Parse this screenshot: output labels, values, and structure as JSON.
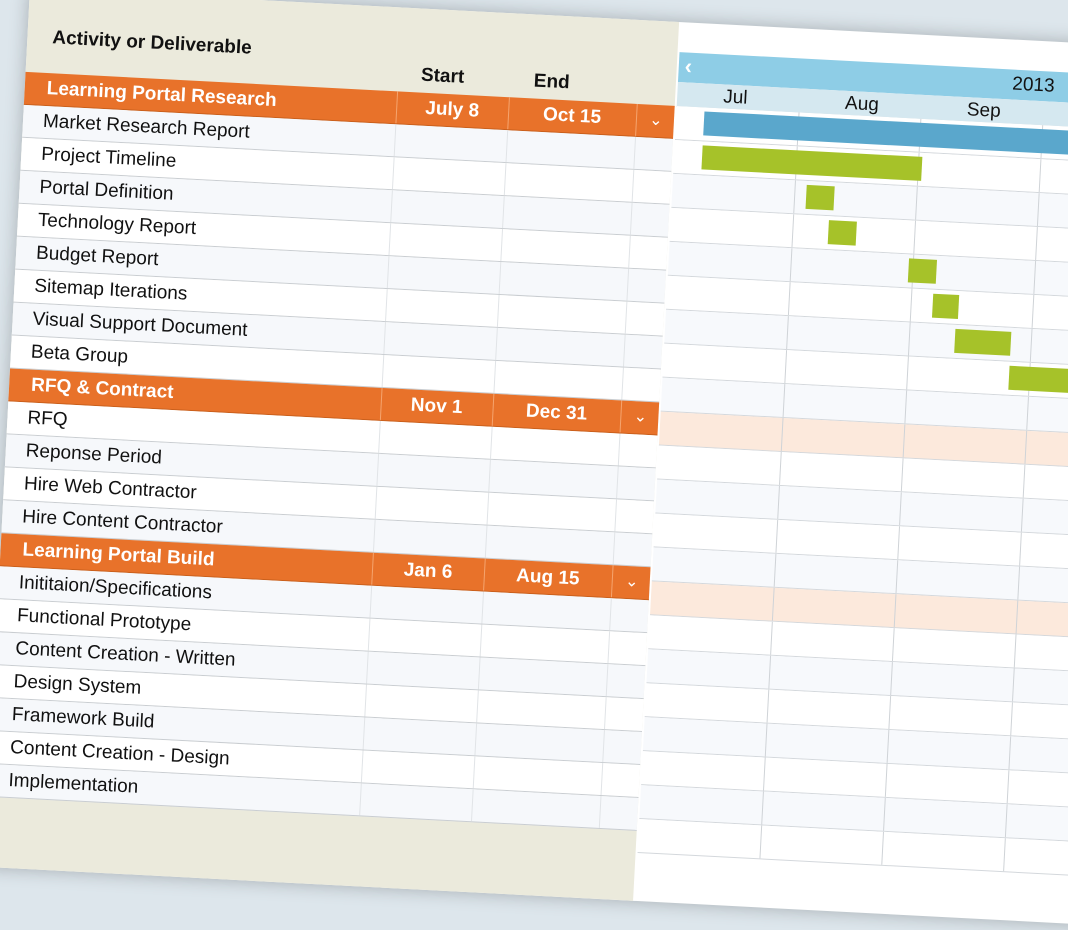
{
  "headers": {
    "activity": "Activity or Deliverable",
    "start": "Start",
    "end": "End"
  },
  "calendar": {
    "year": "2013",
    "months": [
      "Jul",
      "Aug",
      "Sep"
    ],
    "bar_colors": {
      "summary": "#5aa7cc",
      "task": "#a6c229"
    }
  },
  "groups": [
    {
      "title": "Learning Portal Research",
      "start": "July 8",
      "end": "Oct 15",
      "tasks": [
        "Market Research Report",
        "Project Timeline",
        "Portal Definition",
        "Technology Report",
        "Budget Report",
        "Sitemap Iterations",
        "Visual Support Document",
        "Beta Group"
      ]
    },
    {
      "title": "RFQ & Contract",
      "start": "Nov 1",
      "end": "Dec 31",
      "tasks": [
        "RFQ",
        "Reponse Period",
        "Hire Web Contractor",
        "Hire Content Contractor"
      ]
    },
    {
      "title": "Learning Portal Build",
      "start": "Jan 6",
      "end": "Aug 15",
      "tasks": [
        "Inititaion/Specifications",
        "Functional Prototype",
        "Content Creation - Written",
        "Design System",
        "Framework Build",
        "Content Creation - Design",
        "Implementation"
      ]
    }
  ]
}
